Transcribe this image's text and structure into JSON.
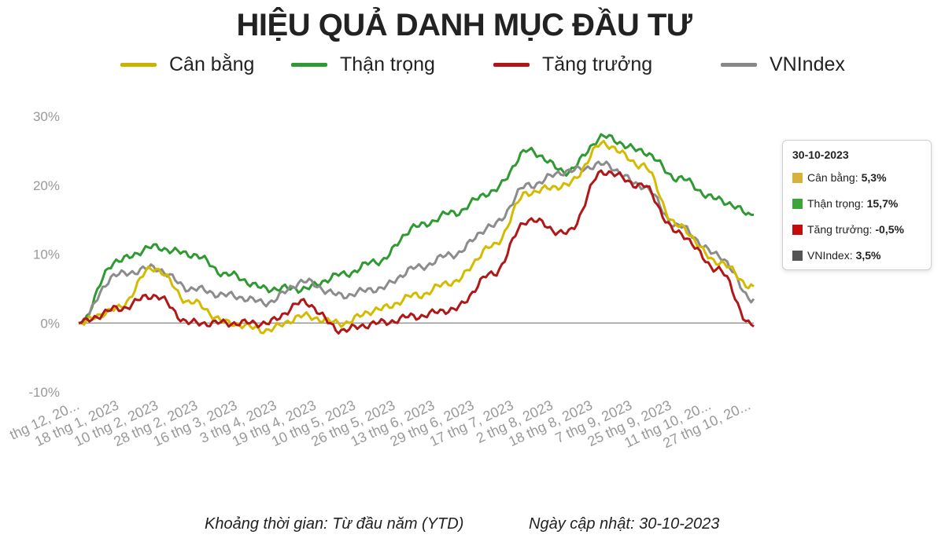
{
  "title": "HIỆU QUẢ DANH MỤC ĐẦU TƯ",
  "legend": [
    {
      "name": "Cân bằng",
      "color": "#c9b400"
    },
    {
      "name": "Thận trọng",
      "color": "#2e9a31"
    },
    {
      "name": "Tăng trưởng",
      "color": "#b01717"
    },
    {
      "name": "VNIndex",
      "color": "#888888"
    }
  ],
  "tooltip": {
    "date": "30-10-2023",
    "rows": [
      {
        "label": "Cân bằng:",
        "value": "5,3%",
        "color": "#d8b13a"
      },
      {
        "label": "Thận trọng:",
        "value": "15,7%",
        "color": "#3aa63a"
      },
      {
        "label": "Tăng trưởng:",
        "value": "-0,5%",
        "color": "#c40c0c"
      },
      {
        "label": "VNIndex:",
        "value": "3,5%",
        "color": "#555555"
      }
    ]
  },
  "footer": {
    "period": "Khoảng thời gian: Từ đầu năm (YTD)",
    "updated": "Ngày cập nhật: 30-10-2023"
  },
  "chart_data": {
    "type": "line",
    "y_ticks": [
      "30%",
      "20%",
      "10%",
      "0%",
      "-10%"
    ],
    "y_tick_values": [
      30,
      20,
      10,
      0,
      -10
    ],
    "ylim": [
      -10,
      30
    ],
    "x_tick_labels": [
      "thg 12, 20...",
      "18 thg 1, 2023",
      "10 thg 2, 2023",
      "28 thg 2, 2023",
      "16 thg 3, 2023",
      "3 thg 4, 2023",
      "19 thg 4, 2023",
      "10 thg 5, 2023",
      "26 thg 5, 2023",
      "13 thg 6, 2023",
      "29 thg 6, 2023",
      "17 thg 7, 2023",
      "2 thg 8, 2023",
      "18 thg 8, 2023",
      "7 thg 9, 2023",
      "25 thg 9, 2023",
      "11 thg 10, 20...",
      "27 thg 10, 20..."
    ],
    "x": [
      "30 thg 12, 2022",
      "18 thg 1, 2023",
      "10 thg 2, 2023",
      "28 thg 2, 2023",
      "16 thg 3, 2023",
      "3 thg 4, 2023",
      "19 thg 4, 2023",
      "10 thg 5, 2023",
      "26 thg 5, 2023",
      "13 thg 6, 2023",
      "29 thg 6, 2023",
      "17 thg 7, 2023",
      "2 thg 8, 2023",
      "18 thg 8, 2023",
      "7 thg 9, 2023",
      "25 thg 9, 2023",
      "11 thg 10, 2023",
      "27 thg 10, 2023",
      "30 thg 10, 2023"
    ],
    "series": [
      {
        "name": "Thận trọng",
        "color": "#2e9a31",
        "values": [
          0,
          9,
          11,
          10,
          7,
          5,
          5,
          7,
          9,
          14,
          16,
          19,
          25,
          22,
          27,
          25,
          21,
          18,
          15.7
        ]
      },
      {
        "name": "VNIndex",
        "color": "#8c8c8c",
        "values": [
          0,
          7,
          8,
          5,
          4,
          3,
          6,
          4,
          5,
          8,
          10,
          14,
          20,
          22,
          23,
          20,
          14,
          10,
          3.5
        ]
      },
      {
        "name": "Cân bằng",
        "color": "#d4bb00",
        "values": [
          0,
          2,
          8,
          3,
          0,
          -1,
          1,
          0,
          2,
          4,
          6,
          11,
          19,
          20,
          26,
          23,
          14,
          9,
          5.3
        ]
      },
      {
        "name": "Tăng trưởng",
        "color": "#b01717",
        "values": [
          0,
          2,
          4,
          0,
          0,
          0,
          3,
          -1,
          0,
          1,
          2,
          7,
          15,
          13,
          22,
          20,
          13,
          8,
          -0.5
        ]
      }
    ],
    "grid": false,
    "legend_position": "top"
  }
}
